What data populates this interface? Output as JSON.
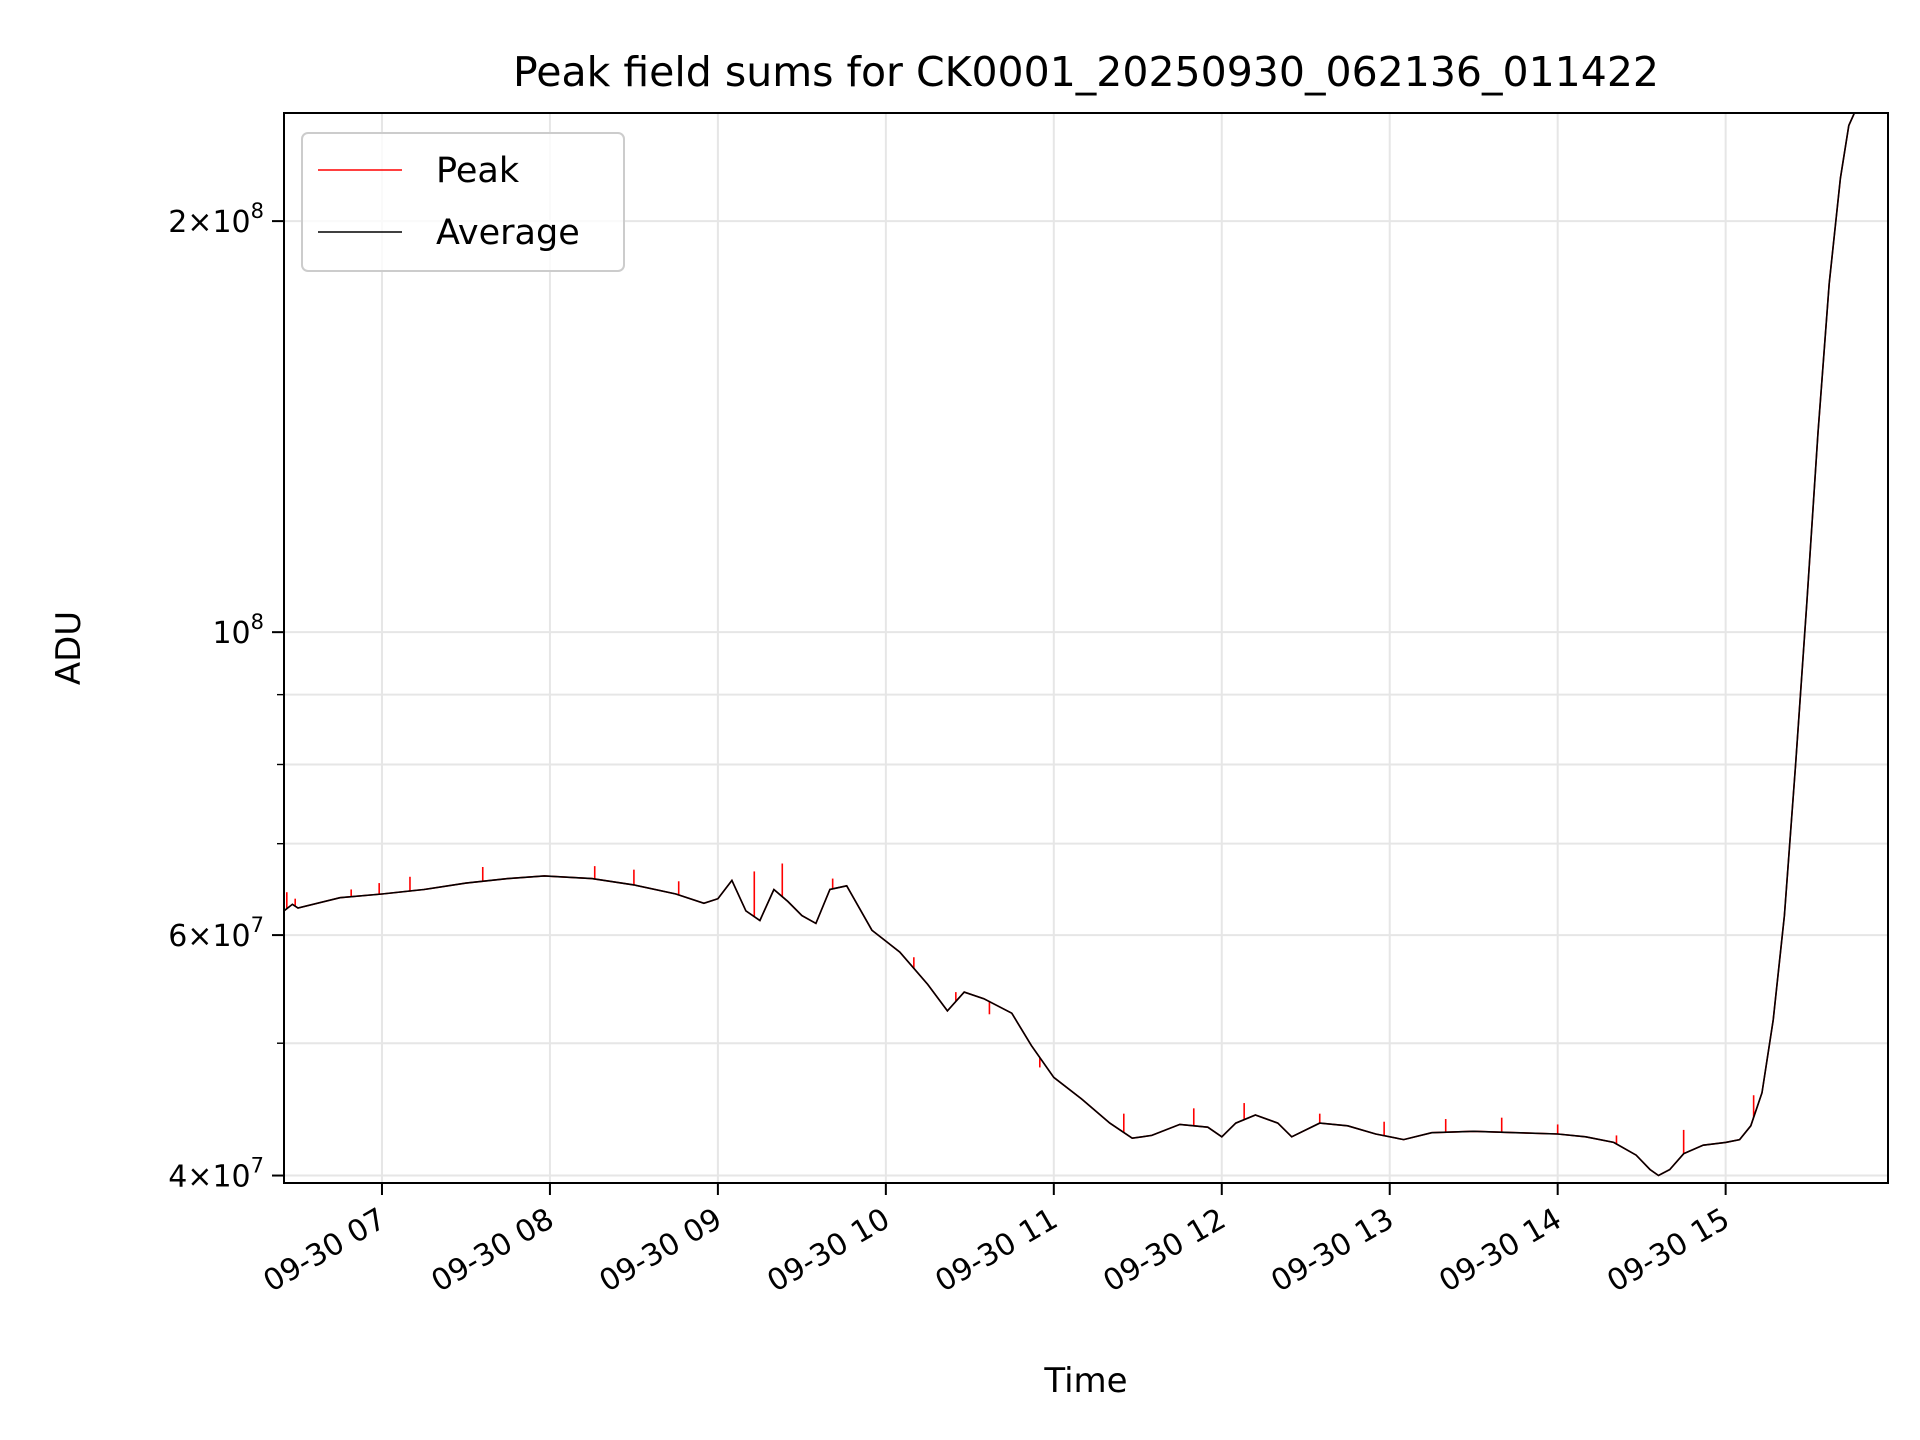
{
  "chart_data": {
    "type": "line",
    "title": "Peak field sums for CK0001_20250930_062136_011422",
    "xlabel": "Time",
    "ylabel": "ADU",
    "yscale": "log",
    "ylim": [
      39500000,
      240000000
    ],
    "xlim": [
      "2025-09-30 06:25",
      "2025-09-30 15:58"
    ],
    "grid": true,
    "legend_position": "upper left",
    "x_tick_labels": [
      "09-30 07",
      "09-30 08",
      "09-30 09",
      "09-30 10",
      "09-30 11",
      "09-30 12",
      "09-30 13",
      "09-30 14",
      "09-30 15"
    ],
    "x_ticks": [
      "2025-09-30 07:00",
      "2025-09-30 08:00",
      "2025-09-30 09:00",
      "2025-09-30 10:00",
      "2025-09-30 11:00",
      "2025-09-30 12:00",
      "2025-09-30 13:00",
      "2025-09-30 14:00",
      "2025-09-30 15:00"
    ],
    "y_major_ticks": [
      {
        "value": 40000000,
        "mantissa": "4",
        "exponent": "7"
      },
      {
        "value": 60000000,
        "mantissa": "6",
        "exponent": "7"
      },
      {
        "value": 100000000,
        "mantissa": "",
        "exponent": "8"
      },
      {
        "value": 200000000,
        "mantissa": "2",
        "exponent": "8"
      }
    ],
    "y_minor_ticks": [
      50000000,
      70000000,
      80000000,
      90000000
    ],
    "series": [
      {
        "name": "Peak",
        "color": "#ff0000",
        "spikes": [
          [
            "2025-09-30 06:26",
            64500000
          ],
          [
            "2025-09-30 06:29",
            63800000
          ],
          [
            "2025-09-30 06:49",
            64800000
          ],
          [
            "2025-09-30 06:59",
            65500000
          ],
          [
            "2025-09-30 07:10",
            66200000
          ],
          [
            "2025-09-30 07:36",
            67300000
          ],
          [
            "2025-09-30 08:16",
            67400000
          ],
          [
            "2025-09-30 08:30",
            67000000
          ],
          [
            "2025-09-30 08:46",
            65700000
          ],
          [
            "2025-09-30 09:13",
            66800000
          ],
          [
            "2025-09-30 09:23",
            67700000
          ],
          [
            "2025-09-30 09:41",
            66000000
          ],
          [
            "2025-09-30 10:10",
            57800000
          ],
          [
            "2025-09-30 10:25",
            54500000
          ],
          [
            "2025-09-30 10:37",
            52500000
          ],
          [
            "2025-09-30 10:55",
            48000000
          ],
          [
            "2025-09-30 11:25",
            44400000
          ],
          [
            "2025-09-30 11:50",
            44800000
          ],
          [
            "2025-09-30 12:08",
            45200000
          ],
          [
            "2025-09-30 12:35",
            44400000
          ],
          [
            "2025-09-30 12:58",
            43800000
          ],
          [
            "2025-09-30 13:20",
            44000000
          ],
          [
            "2025-09-30 13:40",
            44100000
          ],
          [
            "2025-09-30 14:00",
            43600000
          ],
          [
            "2025-09-30 14:21",
            42800000
          ],
          [
            "2025-09-30 14:45",
            43200000
          ],
          [
            "2025-09-30 15:10",
            45800000
          ]
        ]
      },
      {
        "name": "Average",
        "color": "#000000",
        "points": [
          [
            "2025-09-30 06:25",
            62500000
          ],
          [
            "2025-09-30 06:28",
            63200000
          ],
          [
            "2025-09-30 06:30",
            62800000
          ],
          [
            "2025-09-30 06:45",
            63900000
          ],
          [
            "2025-09-30 07:00",
            64300000
          ],
          [
            "2025-09-30 07:15",
            64800000
          ],
          [
            "2025-09-30 07:30",
            65500000
          ],
          [
            "2025-09-30 07:45",
            66000000
          ],
          [
            "2025-09-30 07:58",
            66300000
          ],
          [
            "2025-09-30 08:15",
            66000000
          ],
          [
            "2025-09-30 08:30",
            65300000
          ],
          [
            "2025-09-30 08:45",
            64300000
          ],
          [
            "2025-09-30 08:55",
            63300000
          ],
          [
            "2025-09-30 09:00",
            63800000
          ],
          [
            "2025-09-30 09:05",
            65800000
          ],
          [
            "2025-09-30 09:10",
            62500000
          ],
          [
            "2025-09-30 09:15",
            61500000
          ],
          [
            "2025-09-30 09:20",
            64800000
          ],
          [
            "2025-09-30 09:25",
            63500000
          ],
          [
            "2025-09-30 09:30",
            62000000
          ],
          [
            "2025-09-30 09:35",
            61200000
          ],
          [
            "2025-09-30 09:40",
            64800000
          ],
          [
            "2025-09-30 09:46",
            65200000
          ],
          [
            "2025-09-30 09:55",
            60500000
          ],
          [
            "2025-09-30 10:05",
            58300000
          ],
          [
            "2025-09-30 10:15",
            55200000
          ],
          [
            "2025-09-30 10:22",
            52800000
          ],
          [
            "2025-09-30 10:28",
            54500000
          ],
          [
            "2025-09-30 10:35",
            53900000
          ],
          [
            "2025-09-30 10:45",
            52600000
          ],
          [
            "2025-09-30 10:52",
            49800000
          ],
          [
            "2025-09-30 11:00",
            47200000
          ],
          [
            "2025-09-30 11:10",
            45500000
          ],
          [
            "2025-09-30 11:20",
            43700000
          ],
          [
            "2025-09-30 11:28",
            42600000
          ],
          [
            "2025-09-30 11:35",
            42800000
          ],
          [
            "2025-09-30 11:45",
            43600000
          ],
          [
            "2025-09-30 11:55",
            43400000
          ],
          [
            "2025-09-30 12:00",
            42700000
          ],
          [
            "2025-09-30 12:05",
            43700000
          ],
          [
            "2025-09-30 12:12",
            44300000
          ],
          [
            "2025-09-30 12:20",
            43700000
          ],
          [
            "2025-09-30 12:25",
            42700000
          ],
          [
            "2025-09-30 12:35",
            43700000
          ],
          [
            "2025-09-30 12:45",
            43500000
          ],
          [
            "2025-09-30 12:55",
            42900000
          ],
          [
            "2025-09-30 13:05",
            42500000
          ],
          [
            "2025-09-30 13:15",
            43000000
          ],
          [
            "2025-09-30 13:30",
            43100000
          ],
          [
            "2025-09-30 13:45",
            43000000
          ],
          [
            "2025-09-30 14:00",
            42900000
          ],
          [
            "2025-09-30 14:10",
            42700000
          ],
          [
            "2025-09-30 14:20",
            42300000
          ],
          [
            "2025-09-30 14:28",
            41400000
          ],
          [
            "2025-09-30 14:33",
            40400000
          ],
          [
            "2025-09-30 14:36",
            40000000
          ],
          [
            "2025-09-30 14:40",
            40400000
          ],
          [
            "2025-09-30 14:45",
            41500000
          ],
          [
            "2025-09-30 14:52",
            42100000
          ],
          [
            "2025-09-30 15:00",
            42300000
          ],
          [
            "2025-09-30 15:05",
            42500000
          ],
          [
            "2025-09-30 15:09",
            43500000
          ],
          [
            "2025-09-30 15:13",
            46000000
          ],
          [
            "2025-09-30 15:17",
            52000000
          ],
          [
            "2025-09-30 15:21",
            62000000
          ],
          [
            "2025-09-30 15:25",
            80000000
          ],
          [
            "2025-09-30 15:29",
            105000000
          ],
          [
            "2025-09-30 15:33",
            140000000
          ],
          [
            "2025-09-30 15:37",
            180000000
          ],
          [
            "2025-09-30 15:41",
            215000000
          ],
          [
            "2025-09-30 15:44",
            235000000
          ],
          [
            "2025-09-30 15:46",
            240000000
          ]
        ]
      }
    ]
  }
}
